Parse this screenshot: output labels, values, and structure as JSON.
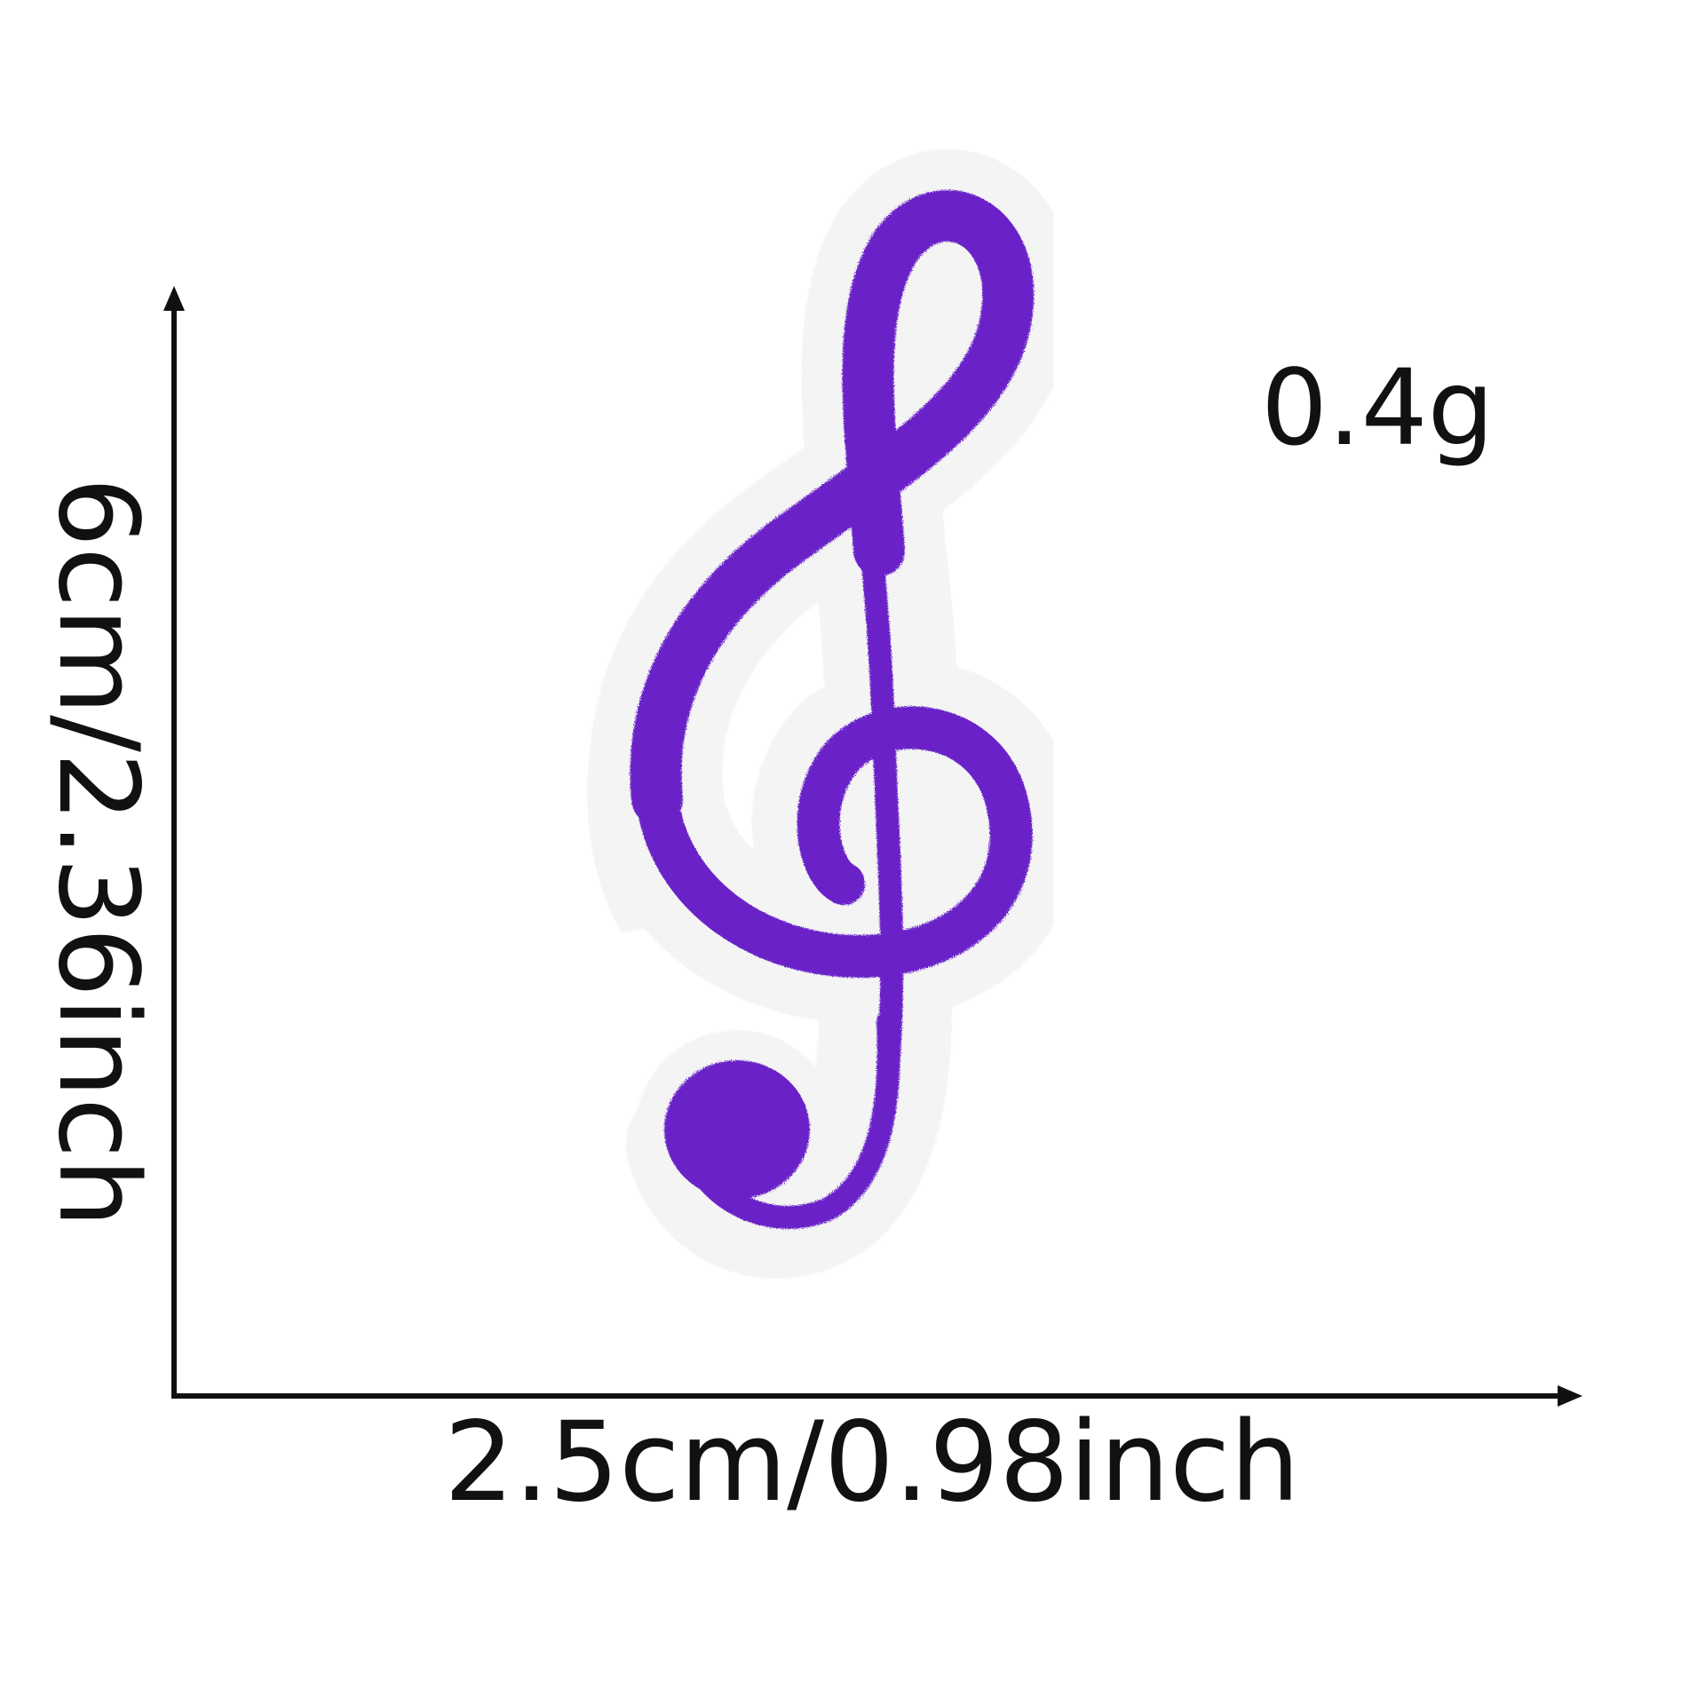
{
  "labels": {
    "weight": "0.4g",
    "width": "2.5cm/0.98inch",
    "height": "6cm/2.36inch"
  },
  "colors": {
    "patch_thread": "#6a22c8",
    "patch_felt": "#f7f7f7",
    "ink": "#111111",
    "background": "#ffffff"
  },
  "icons": {
    "patch": "treble-clef-icon"
  }
}
